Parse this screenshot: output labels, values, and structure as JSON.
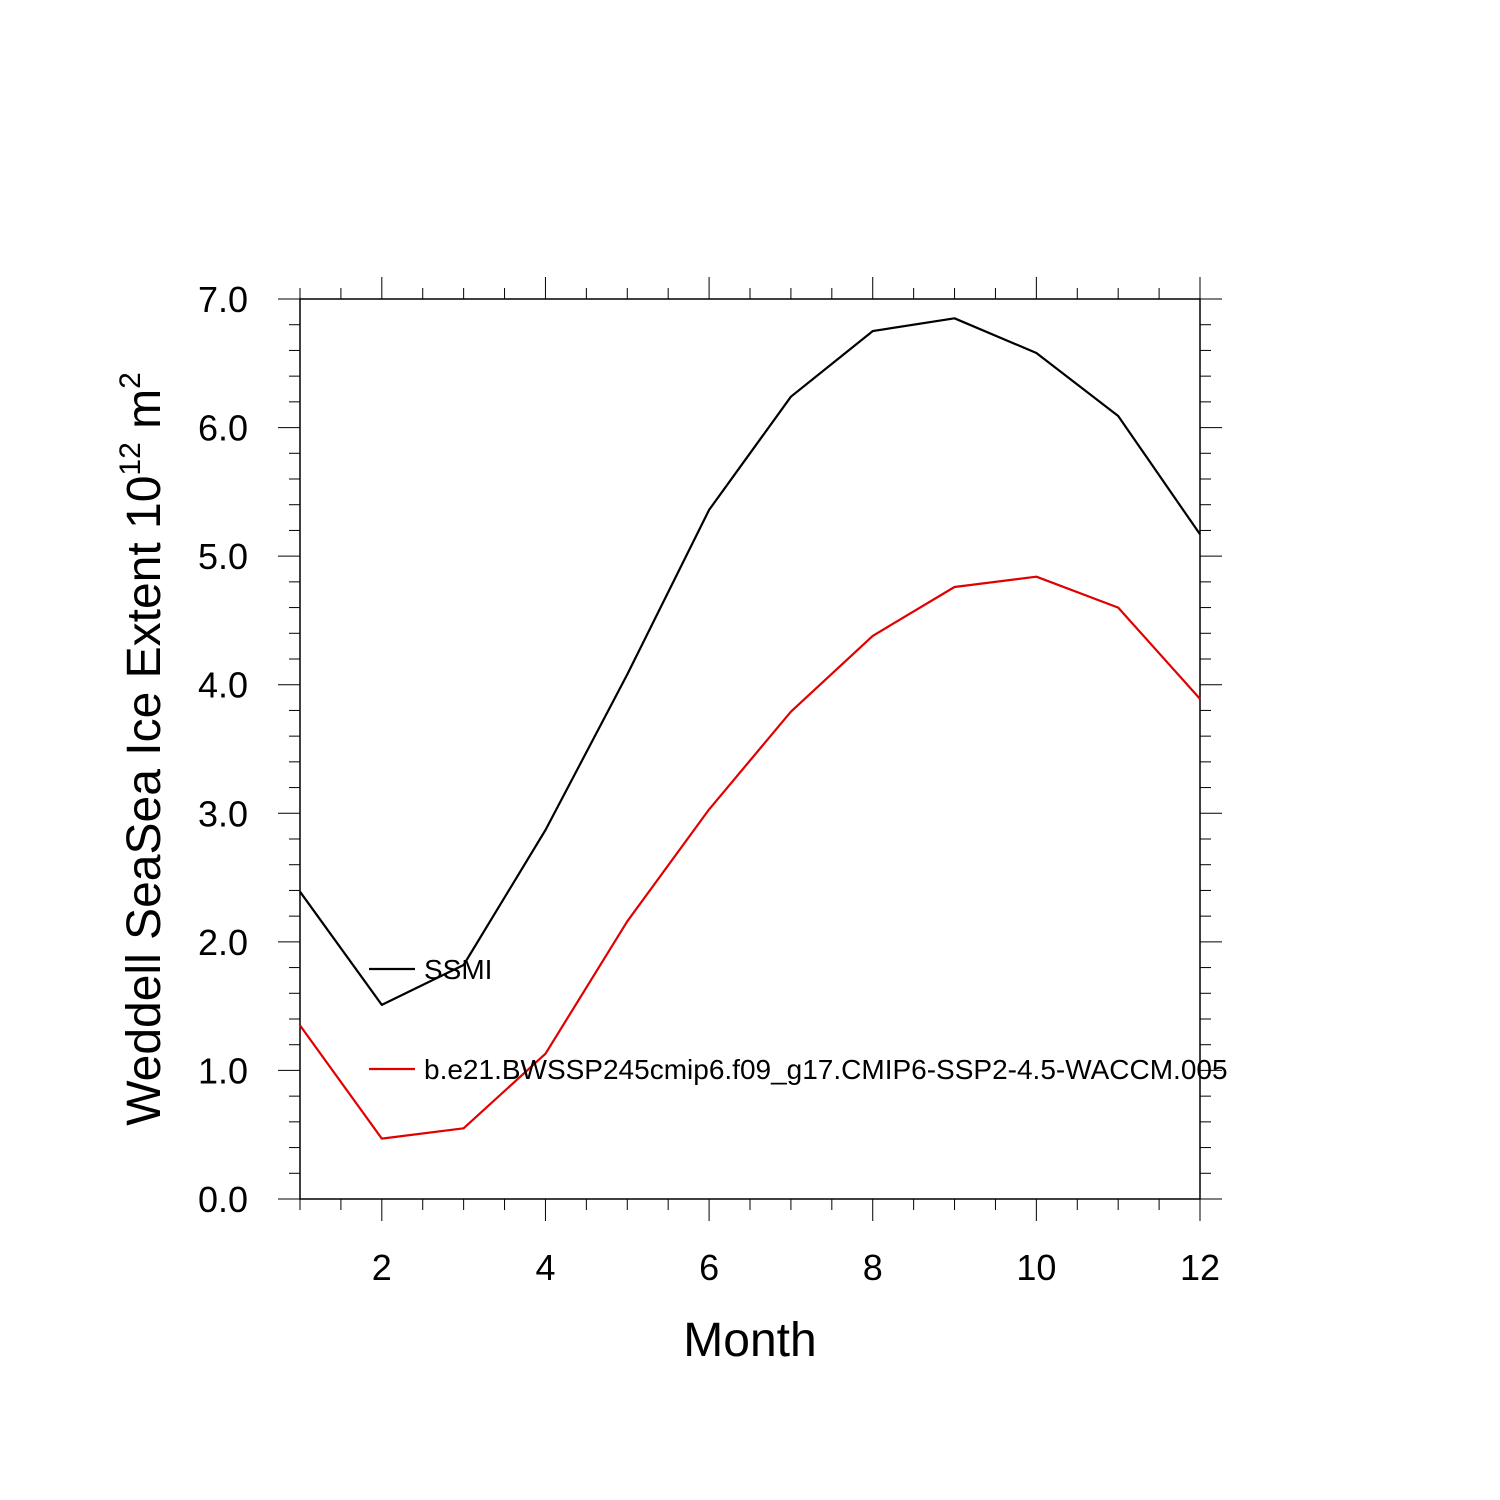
{
  "chart_data": {
    "type": "line",
    "xlabel": "Month",
    "ylabel": {
      "main": "Weddell SeaSea Ice Extent 10",
      "sup1": "12",
      "mid": " m",
      "sup2": "2"
    },
    "xlim": [
      1,
      12
    ],
    "ylim": [
      0.0,
      7.0
    ],
    "x_ticks": [
      2,
      4,
      6,
      8,
      10,
      12
    ],
    "x_tick_labels": [
      "2",
      "4",
      "6",
      "8",
      "10",
      "12"
    ],
    "y_ticks": [
      0,
      1,
      2,
      3,
      4,
      5,
      6,
      7
    ],
    "y_tick_labels": [
      "0.0",
      "1.0",
      "2.0",
      "3.0",
      "4.0",
      "5.0",
      "6.0",
      "7.0"
    ],
    "grid": false,
    "legend_position": "inside-left",
    "x": [
      1,
      2,
      3,
      4,
      5,
      6,
      7,
      8,
      9,
      10,
      11,
      12
    ],
    "series": [
      {
        "name": "SSMI",
        "color": "#000000",
        "values": [
          2.39,
          1.51,
          1.82,
          2.87,
          4.08,
          5.36,
          6.24,
          6.75,
          6.85,
          6.58,
          6.09,
          5.17
        ]
      },
      {
        "name": "b.e21.BWSSP245cmip6.f09_g17.CMIP6-SSP2-4.5-WACCM.005",
        "color": "#e00000",
        "values": [
          1.35,
          0.47,
          0.55,
          1.13,
          2.16,
          3.03,
          3.79,
          4.38,
          4.76,
          4.84,
          4.6,
          3.89
        ]
      }
    ]
  }
}
